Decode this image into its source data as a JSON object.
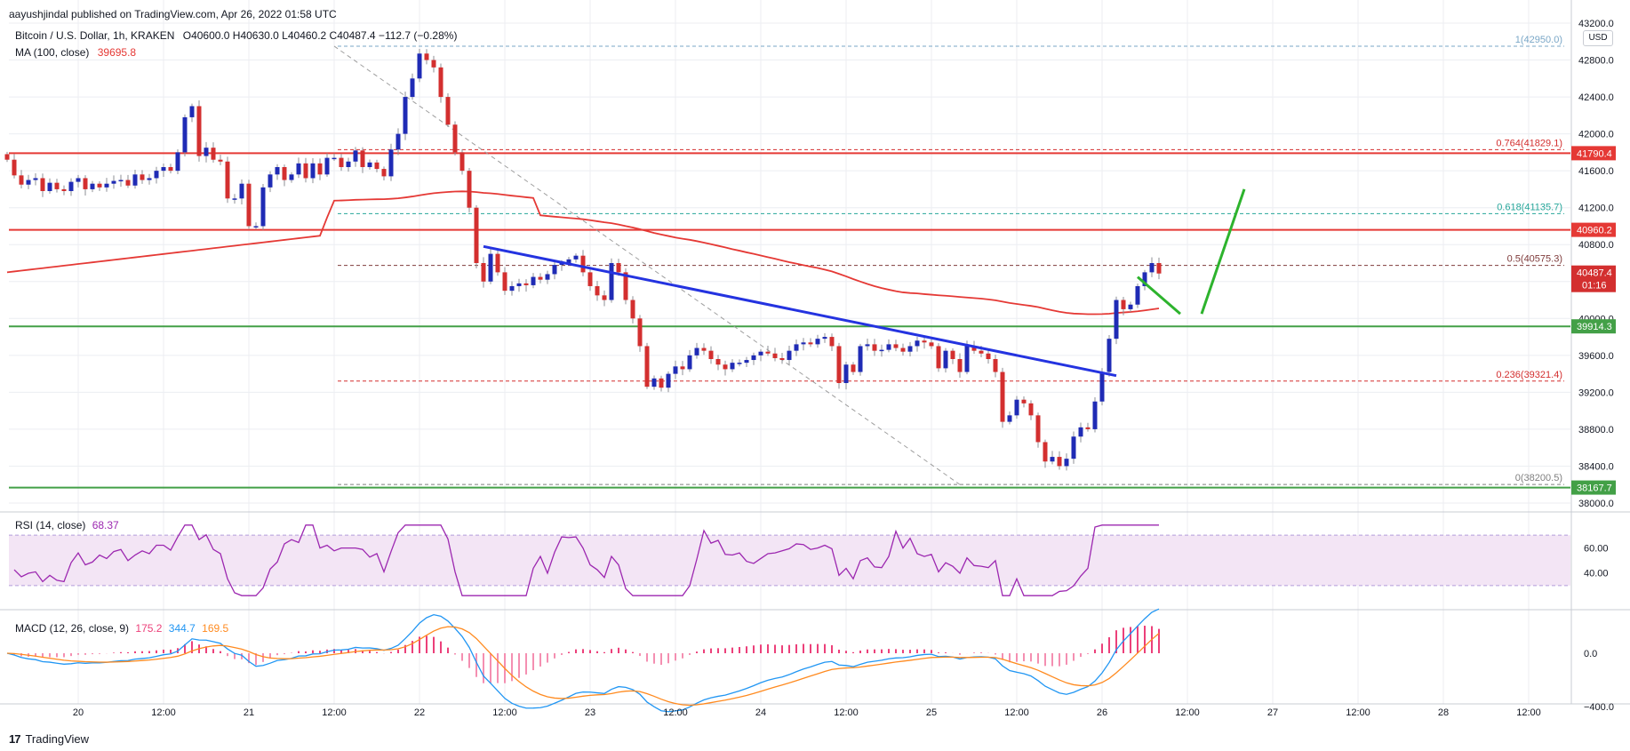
{
  "header": {
    "attribution": "aayushjindal published on TradingView.com, Apr 26, 2022 01:58 UTC"
  },
  "legend": {
    "symbol": "Bitcoin / U.S. Dollar, 1h, KRAKEN",
    "ohlc": "O40600.0  H40630.0  L40460.2  C40487.4  −112.7 (−0.28%)",
    "ma_label": "MA (100, close)",
    "ma_value": "39695.8",
    "rsi_label": "RSI (14, close)",
    "rsi_value": "68.37",
    "macd_label": "MACD (12, 26, close, 9)",
    "macd_hist": "175.2",
    "macd_line": "344.7",
    "macd_signal": "169.5"
  },
  "currency_badge": "USD",
  "footer": {
    "logo": "17",
    "brand": "TradingView"
  },
  "colors": {
    "up": "#1f2bb5",
    "down": "#d32f2f",
    "ma": "#e53935",
    "trendline": "#2433e0",
    "support": "#43a047",
    "projection": "#2db32d",
    "rsi": "#9c27b0",
    "macd": "#2196f3",
    "signal": "#ff8a1f",
    "hist": "#ec407a"
  },
  "chart_data": {
    "type": "candlestick",
    "price_axis": {
      "ticks": [
        "43200.0",
        "42800.0",
        "42400.0",
        "42000.0",
        "41600.0",
        "41200.0",
        "40800.0",
        "40400.0",
        "40000.0",
        "39600.0",
        "39200.0",
        "38800.0",
        "38400.0",
        "38000.0"
      ],
      "tick_values": [
        43200,
        42800,
        42400,
        42000,
        41600,
        41200,
        40800,
        40400,
        40000,
        39600,
        39200,
        38800,
        38400,
        38000
      ]
    },
    "time_axis": {
      "labels": [
        "20",
        "12:00",
        "21",
        "12:00",
        "22",
        "12:00",
        "23",
        "12:00",
        "24",
        "12:00",
        "25",
        "12:00",
        "26",
        "12:00",
        "27",
        "12:00",
        "28",
        "12:00"
      ],
      "hours": [
        0,
        12,
        24,
        36,
        48,
        60,
        72,
        84,
        96,
        108,
        120,
        132,
        144,
        156,
        168,
        180,
        192,
        204
      ]
    },
    "horizontal_levels": [
      {
        "price": 41790.4,
        "label": "41790.4",
        "kind": "resistance"
      },
      {
        "price": 40960.2,
        "label": "40960.2",
        "kind": "resistance"
      },
      {
        "price": 39914.3,
        "label": "39914.3",
        "kind": "support"
      },
      {
        "price": 38167.7,
        "label": "38167.7",
        "kind": "support"
      }
    ],
    "current_price": {
      "price": 40487.4,
      "label": "40487.4",
      "countdown": "01:16"
    },
    "fibonacci": [
      {
        "ratio": "1",
        "price": 42950.0,
        "label": "1(42950.0)"
      },
      {
        "ratio": "0.764",
        "price": 41829.1,
        "label": "0.764(41829.1)"
      },
      {
        "ratio": "0.618",
        "price": 41135.7,
        "label": "0.618(41135.7)"
      },
      {
        "ratio": "0.5",
        "price": 40575.3,
        "label": "0.5(40575.3)"
      },
      {
        "ratio": "0.236",
        "price": 39321.4,
        "label": "0.236(39321.4)"
      },
      {
        "ratio": "0",
        "price": 38200.5,
        "label": "0(38200.5)"
      }
    ],
    "trendline": [
      {
        "hour": 57,
        "price": 40780
      },
      {
        "hour": 146,
        "price": 39380
      }
    ],
    "projection": [
      {
        "hour": 149,
        "price": 40450
      },
      {
        "hour": 155,
        "price": 40050
      },
      {
        "hour": 155,
        "price": 40050
      },
      {
        "hour": 158,
        "price": 40050
      },
      {
        "hour": 158,
        "price": 40050
      },
      {
        "hour": 164,
        "price": 41400
      }
    ],
    "fib_diagonal": [
      {
        "hour": 36,
        "price": 42950
      },
      {
        "hour": 124,
        "price": 38200
      }
    ],
    "candles_hourly_close": [
      41720,
      41550,
      41450,
      41500,
      41520,
      41380,
      41470,
      41400,
      41380,
      41480,
      41520,
      41400,
      41460,
      41420,
      41460,
      41490,
      41500,
      41440,
      41560,
      41500,
      41520,
      41600,
      41640,
      41600,
      41800,
      42180,
      42300,
      41760,
      41850,
      41720,
      41700,
      41300,
      41300,
      41460,
      41000,
      41000,
      41420,
      41560,
      41640,
      41500,
      41560,
      41680,
      41520,
      41680,
      41560,
      41740,
      41740,
      41640,
      41700,
      41820,
      41640,
      41690,
      41620,
      41540,
      41830,
      42000,
      42400,
      42600,
      42870,
      42800,
      42720,
      42400,
      42100,
      41800,
      41600,
      41200,
      40600,
      40400,
      40700,
      40500,
      40300,
      40350,
      40380,
      40360,
      40450,
      40420,
      40480,
      40580,
      40600,
      40640,
      40680,
      40500,
      40350,
      40250,
      40200,
      40600,
      40500,
      40200,
      40000,
      39700,
      39260,
      39350,
      39250,
      39400,
      39480,
      39450,
      39600,
      39680,
      39650,
      39560,
      39500,
      39450,
      39520,
      39520,
      39550,
      39600,
      39640,
      39620,
      39570,
      39550,
      39650,
      39720,
      39740,
      39720,
      39780,
      39800,
      39700,
      39300,
      39500,
      39420,
      39700,
      39720,
      39650,
      39660,
      39720,
      39680,
      39640,
      39700,
      39760,
      39740,
      39700,
      39460,
      39650,
      39560,
      39420,
      39700,
      39650,
      39620,
      39560,
      39420,
      38880,
      38950,
      39120,
      39080,
      38950,
      38660,
      38450,
      38500,
      38400,
      38480,
      38720,
      38820,
      38800,
      39100,
      39420,
      39780,
      40200,
      40100,
      40150,
      40350,
      40500,
      40600,
      40487
    ],
    "ma100": "smooth moving average overlay (values read from curve)",
    "rsi": {
      "levels": [
        70,
        30
      ],
      "ticks": [
        "60.00",
        "40.00"
      ],
      "tick_values": [
        60,
        40
      ]
    },
    "macd": {
      "ticks": [
        "0.0",
        "−400.0"
      ],
      "tick_values": [
        0,
        -400
      ]
    }
  }
}
